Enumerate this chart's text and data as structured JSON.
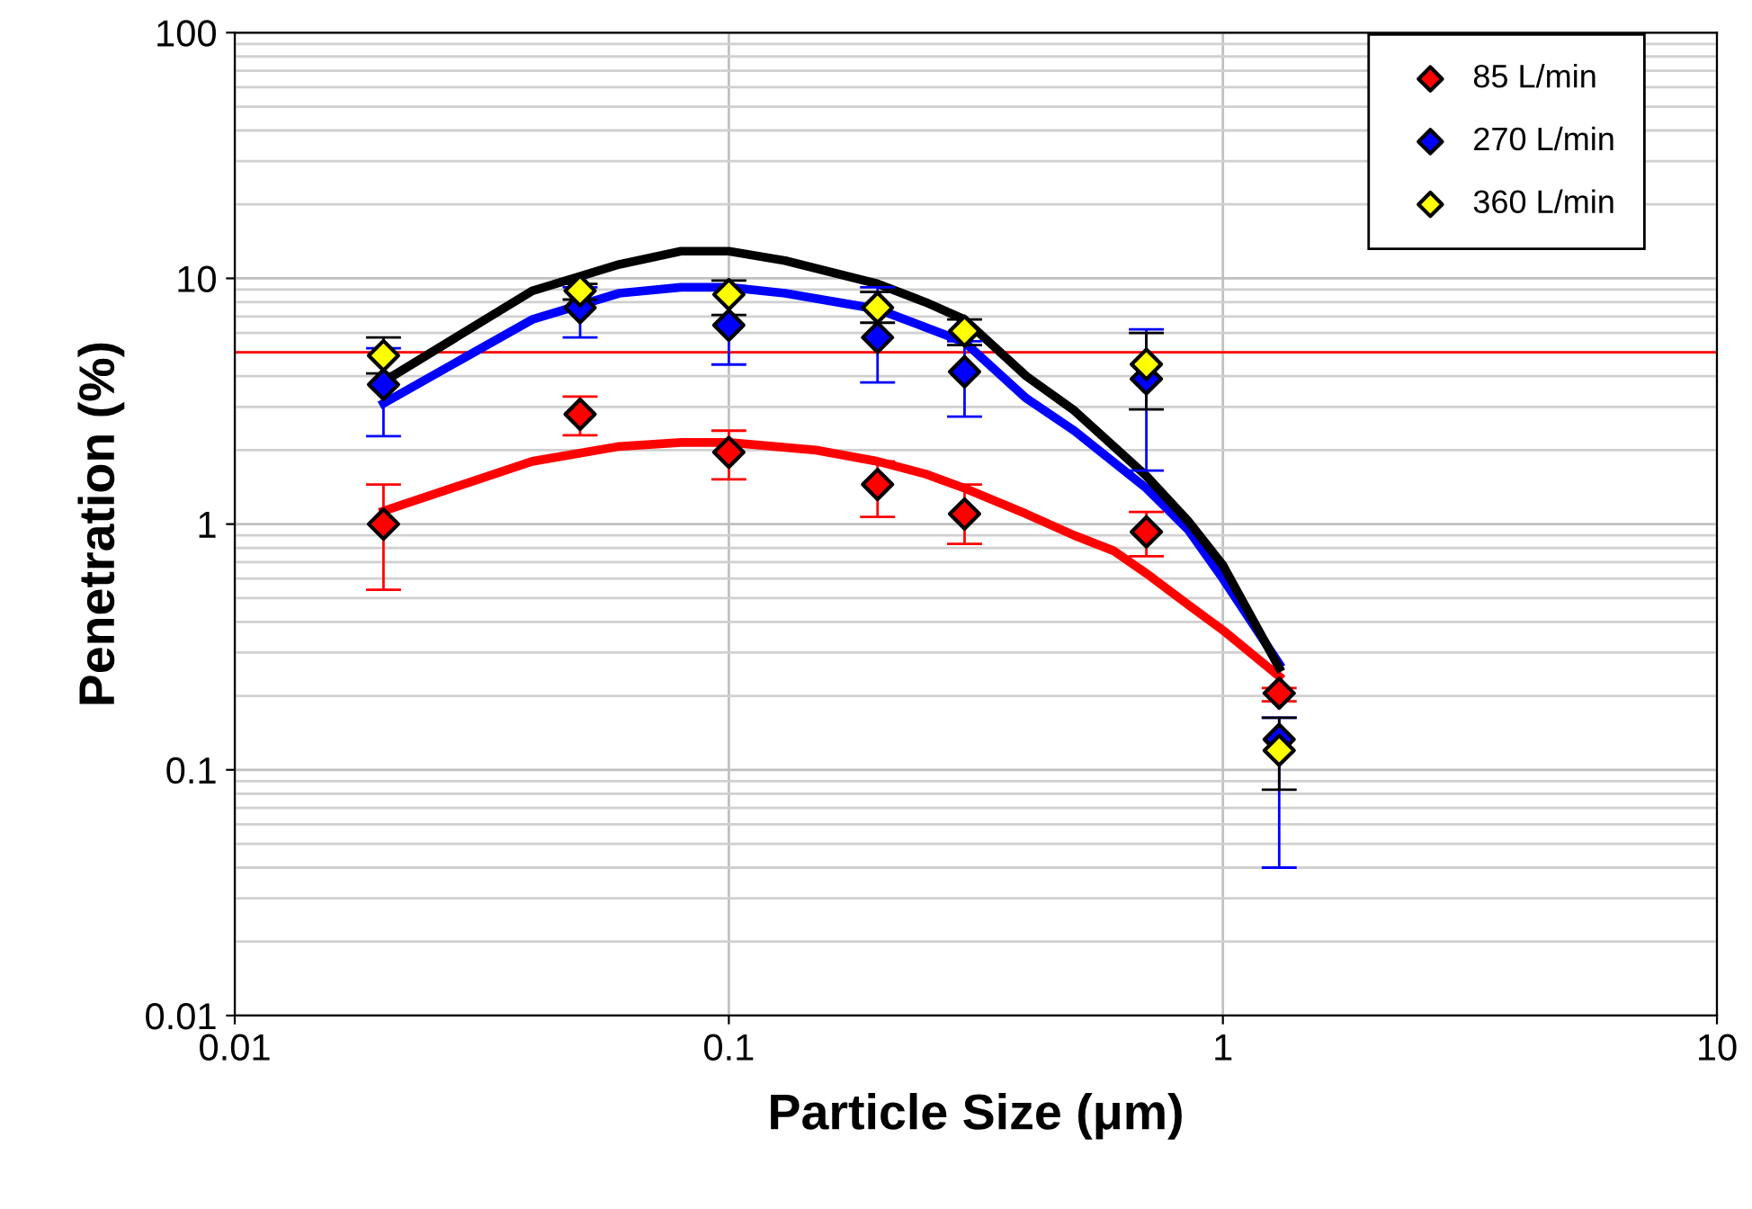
{
  "chart_data": {
    "type": "scatter",
    "xlabel": "Particle Size (μm)",
    "ylabel": "Penetration (%)",
    "log": "xy",
    "xlim": [
      0.01,
      10
    ],
    "ylim": [
      0.01,
      100
    ],
    "xticks": [
      0.01,
      0.1,
      1,
      10
    ],
    "yticks": [
      0.01,
      0.1,
      1,
      10,
      100
    ],
    "grid": true,
    "legend": "top right",
    "marker": "diamond",
    "x": [
      0.02,
      0.05,
      0.1,
      0.2,
      0.3,
      0.7,
      1.3
    ],
    "series": [
      {
        "name": "85 L/min",
        "color": "#ff0000",
        "values": [
          1.0,
          2.8,
          1.96,
          1.45,
          1.1,
          0.93,
          0.205
        ],
        "errors": [
          [
            0.54,
            1.45
          ],
          [
            2.3,
            3.3
          ],
          [
            1.52,
            2.4
          ],
          [
            1.07,
            1.8
          ],
          [
            0.83,
            1.45
          ],
          [
            0.74,
            1.12
          ],
          [
            0.19,
            0.215
          ]
        ]
      },
      {
        "name": "270 L/min",
        "color": "#0000ff",
        "values": [
          3.7,
          7.6,
          6.45,
          5.75,
          4.17,
          3.9,
          0.133
        ],
        "errors": [
          [
            2.28,
            5.2
          ],
          [
            5.75,
            9.2
          ],
          [
            4.46,
            9.3
          ],
          [
            3.77,
            9.2
          ],
          [
            2.74,
            5.55
          ],
          [
            1.65,
            6.2
          ],
          [
            0.04,
            0.163
          ]
        ]
      },
      {
        "name": "360 L/min",
        "color": "#ffff00",
        "values": [
          4.85,
          8.9,
          8.6,
          7.6,
          6.1,
          4.47,
          0.12
        ],
        "errors": [
          [
            4.1,
            5.75
          ],
          [
            8.2,
            9.5
          ],
          [
            7.1,
            9.8
          ],
          [
            6.6,
            8.8
          ],
          [
            5.35,
            6.8
          ],
          [
            2.93,
            6.0
          ],
          [
            0.083,
            0.163
          ]
        ]
      },
      {
        "type": "line",
        "color": "#ff0000",
        "marker": "none",
        "x": [
          0.02,
          0.04,
          0.06,
          0.08,
          0.1,
          0.15,
          0.2,
          0.25,
          0.3,
          0.4,
          0.5,
          0.6,
          0.7,
          0.85,
          1.0,
          1.3
        ],
        "values": [
          1.13,
          1.8,
          2.07,
          2.15,
          2.15,
          2.0,
          1.8,
          1.6,
          1.4,
          1.1,
          0.9,
          0.78,
          0.63,
          0.47,
          0.37,
          0.24
        ]
      },
      {
        "type": "line",
        "color": "#0000ff",
        "marker": "none",
        "x": [
          0.02,
          0.04,
          0.06,
          0.08,
          0.1,
          0.13,
          0.2,
          0.3,
          0.4,
          0.5,
          0.7,
          0.85,
          1.0,
          1.3
        ],
        "values": [
          3.1,
          6.8,
          8.7,
          9.2,
          9.2,
          8.7,
          7.5,
          5.5,
          3.25,
          2.4,
          1.4,
          0.95,
          0.6,
          0.27
        ]
      },
      {
        "type": "line",
        "color": "#000000",
        "marker": "none",
        "x": [
          0.02,
          0.04,
          0.06,
          0.08,
          0.1,
          0.13,
          0.2,
          0.25,
          0.3,
          0.4,
          0.5,
          0.7,
          0.85,
          1.0,
          1.3
        ],
        "values": [
          3.8,
          8.9,
          11.4,
          12.9,
          12.9,
          11.8,
          9.5,
          8.0,
          6.8,
          4.0,
          2.9,
          1.57,
          1.03,
          0.68,
          0.26
        ]
      }
    ],
    "ref_lines": [
      {
        "axis": "y",
        "value": 5,
        "color": "#ff0000"
      }
    ]
  }
}
